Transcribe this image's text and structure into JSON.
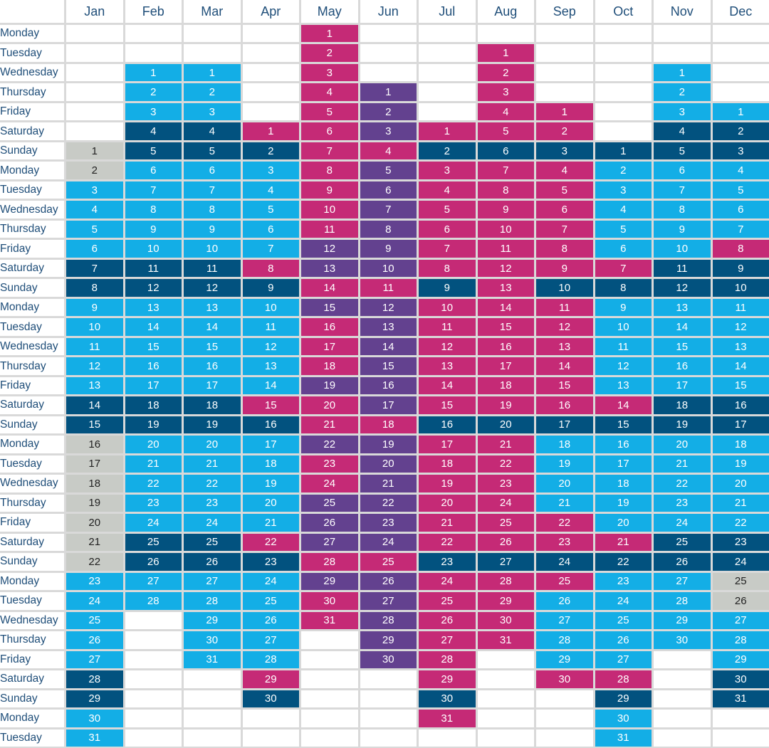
{
  "chart_data": {
    "type": "table",
    "months": [
      "Jan",
      "Feb",
      "Mar",
      "Apr",
      "May",
      "Jun",
      "Jul",
      "Aug",
      "Sep",
      "Oct",
      "Nov",
      "Dec"
    ],
    "weekday_labels": [
      "Monday",
      "Tuesday",
      "Wednesday",
      "Thursday",
      "Friday",
      "Saturday",
      "Sunday"
    ],
    "start_weekday_index": [
      6,
      2,
      2,
      5,
      0,
      3,
      5,
      1,
      4,
      6,
      2,
      4
    ],
    "days_in_month": [
      31,
      28,
      31,
      30,
      31,
      30,
      31,
      31,
      30,
      31,
      30,
      31
    ],
    "colors": {
      "weekday": "#13aee6",
      "weekend": "#02527f",
      "peak": "#c52a76",
      "purple": "#63418f",
      "holiday": "#c8cbc6"
    },
    "categories": {
      "Jan": {
        "holiday": [
          1,
          2,
          16,
          17,
          18,
          19,
          20,
          21,
          22
        ]
      },
      "Feb": {},
      "Mar": {},
      "Apr": {
        "peak_weekends": true
      },
      "May": {
        "all_peak_except_purple": true,
        "purple": [
          12,
          13,
          15,
          19,
          22,
          25,
          26,
          27,
          29
        ]
      },
      "Jun": {
        "purple_all_except": [
          4,
          11,
          18,
          25
        ]
      },
      "Jul": {
        "peak_except": [
          2,
          9,
          16,
          23,
          30
        ]
      },
      "Aug": {
        "all_peak_except": [
          6,
          20,
          27
        ]
      },
      "Sep": {
        "peak": [
          1,
          2,
          4,
          5,
          6,
          7,
          8,
          9,
          11,
          12,
          13,
          14,
          15,
          16,
          22,
          23,
          25,
          30
        ]
      },
      "Oct": {
        "peak_weekends_only": [
          7,
          14,
          21,
          28
        ]
      },
      "Nov": {},
      "Dec": {
        "peak": [
          8
        ],
        "holiday": [
          25,
          26
        ]
      }
    }
  }
}
